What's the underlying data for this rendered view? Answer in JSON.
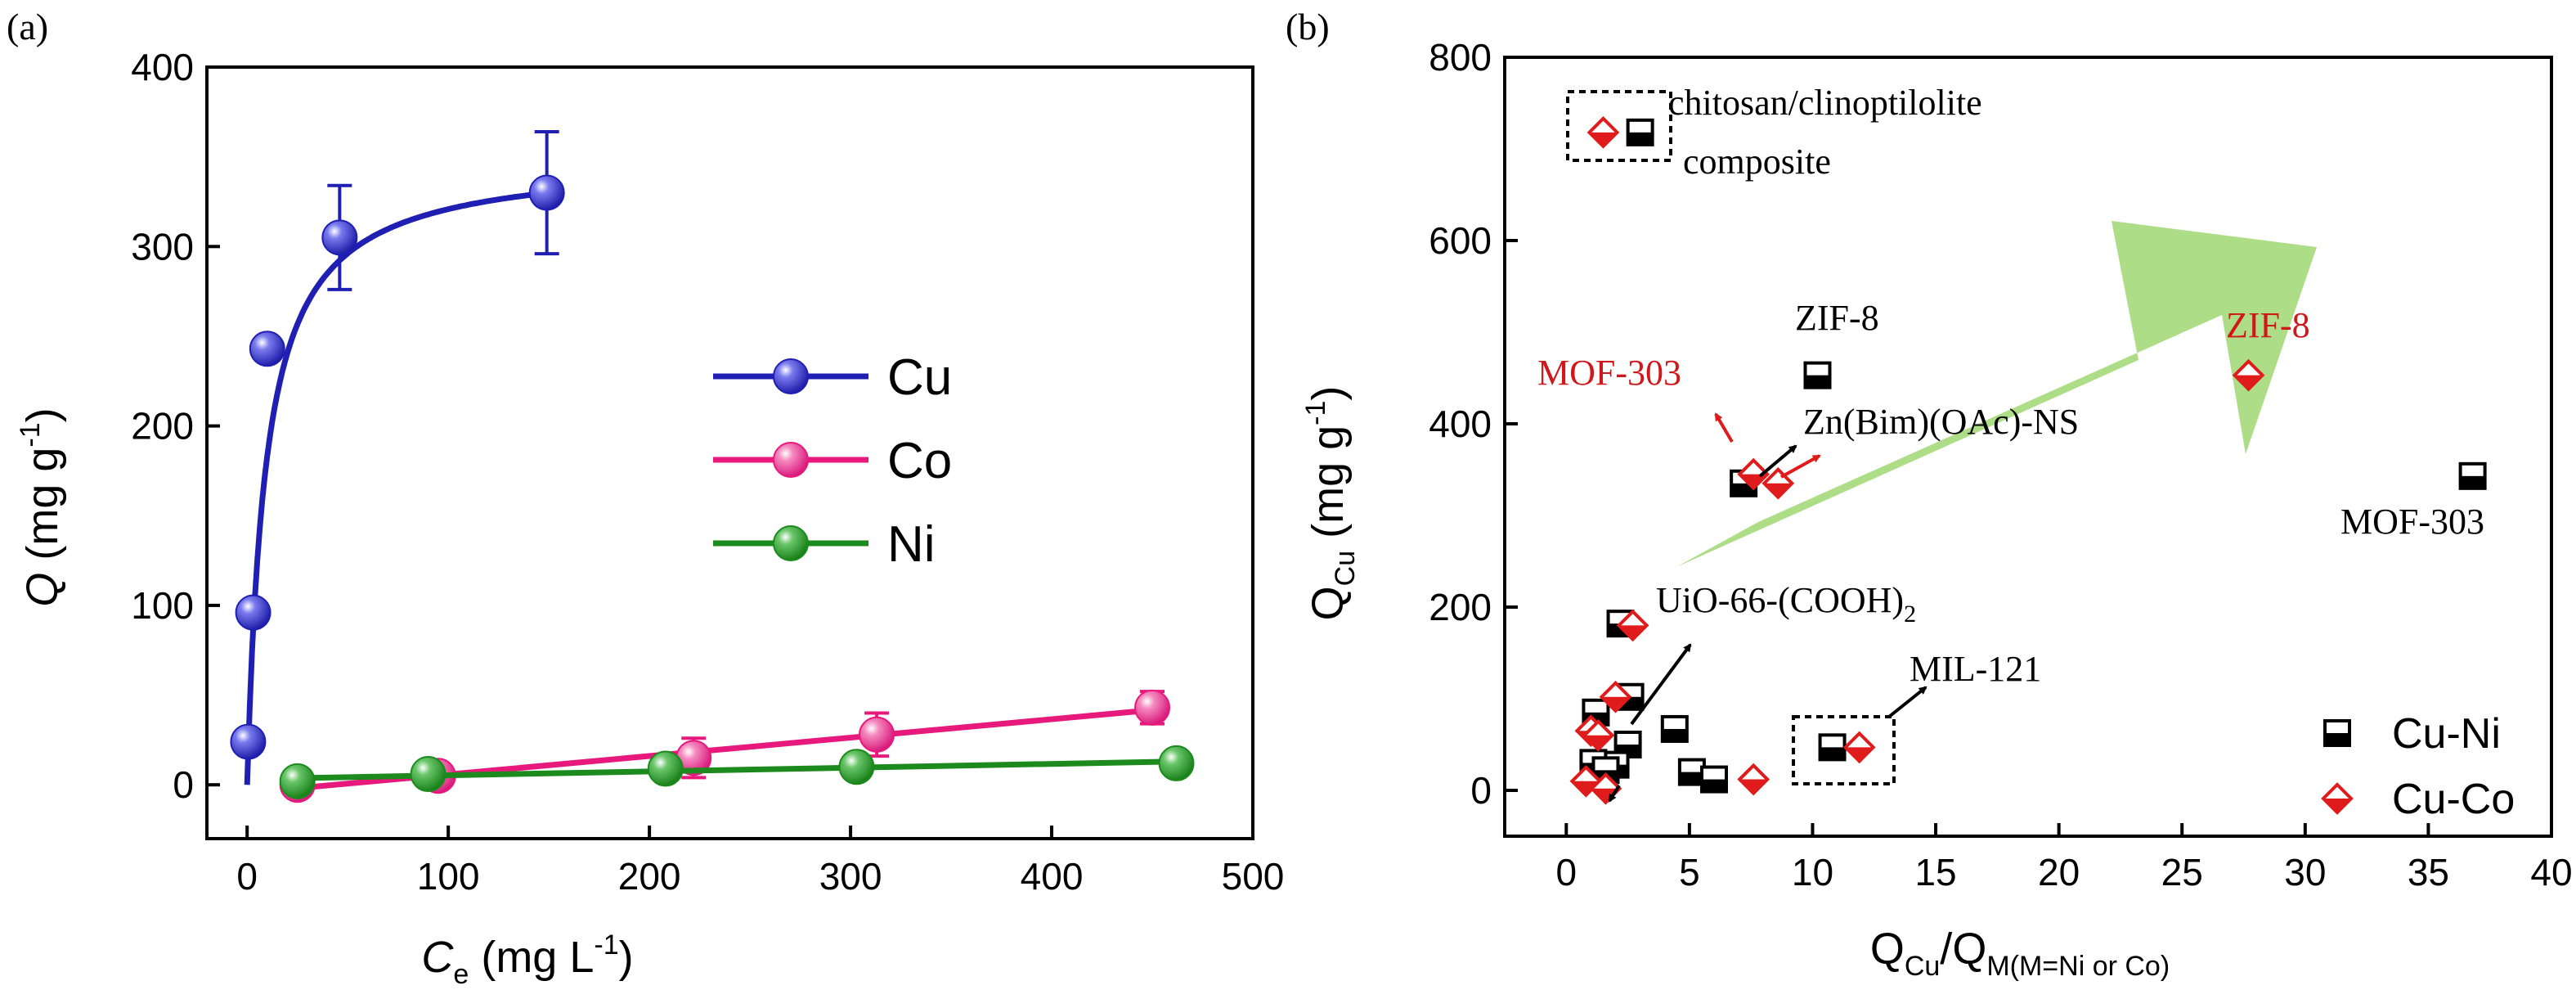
{
  "chart_data": [
    {
      "panel_label": "(a)",
      "type": "scatter",
      "xlabel": {
        "sym": "C",
        "sub": "e",
        "unit": " (mg L",
        "sup": "-1",
        "close": ")"
      },
      "ylabel": {
        "sym": "Q",
        "unit": " (mg g",
        "sup": "-1",
        "close": ")"
      },
      "xlim": [
        -20,
        500
      ],
      "ylim": [
        -30,
        400
      ],
      "xticks": [
        0,
        100,
        200,
        300,
        400,
        500
      ],
      "yticks": [
        0,
        100,
        200,
        300,
        400
      ],
      "series": [
        {
          "name": "Cu",
          "color": "#1f1fb4",
          "points": [
            [
              0.5,
              24
            ],
            [
              3,
              96
            ],
            [
              10,
              243
            ],
            [
              46,
              305
            ],
            [
              149,
              330
            ]
          ],
          "errors": [
            0,
            0,
            0,
            29,
            34
          ],
          "fit": "langmuir",
          "qmax": 350,
          "K": 0.11,
          "fit_x": [
            0,
            150
          ]
        },
        {
          "name": "Co",
          "color": "#e8197d",
          "points": [
            [
              25,
              0
            ],
            [
              95,
              5
            ],
            [
              222,
              15
            ],
            [
              313,
              28
            ],
            [
              450,
              43
            ]
          ],
          "errors": [
            0,
            0,
            11,
            12,
            9
          ],
          "fit": "linear",
          "fit_x": [
            25,
            455
          ]
        },
        {
          "name": "Ni",
          "color": "#1c8a1c",
          "points": [
            [
              25,
              2
            ],
            [
              90,
              6
            ],
            [
              208,
              9
            ],
            [
              303,
              10
            ],
            [
              462,
              12
            ]
          ],
          "errors": [
            0,
            0,
            0,
            0,
            0
          ],
          "fit": "linear",
          "fit_x": [
            25,
            462
          ]
        }
      ]
    },
    {
      "panel_label": "(b)",
      "type": "scatter",
      "xlabel": {
        "sym": "Q",
        "sub": "Cu",
        "slash": "/",
        "sym2": "Q",
        "sub2": "M(M=Ni or Co)"
      },
      "ylabel": {
        "sym": "Q",
        "sub": "Cu",
        "unit": " (mg g",
        "sup": "-1",
        "close": ")"
      },
      "xlim": [
        -2.5,
        40
      ],
      "ylim": [
        -50,
        800
      ],
      "xticks": [
        0,
        5,
        10,
        15,
        20,
        25,
        30,
        35,
        40
      ],
      "yticks": [
        0,
        200,
        400,
        600,
        800
      ],
      "series": [
        {
          "name": "Cu-Ni",
          "marker": "square-half",
          "color": "#000000",
          "points": [
            [
              3,
              718
            ],
            [
              10.2,
              453
            ],
            [
              36.8,
              343
            ],
            [
              7.2,
              335
            ],
            [
              2.2,
              182
            ],
            [
              1.2,
              85
            ],
            [
              2.6,
              102
            ],
            [
              2.5,
              50
            ],
            [
              2.0,
              28
            ],
            [
              1.1,
              30
            ],
            [
              1.6,
              22
            ],
            [
              4.4,
              67
            ],
            [
              5.1,
              20
            ],
            [
              6.0,
              12
            ],
            [
              10.8,
              47
            ]
          ]
        },
        {
          "name": "Cu-Co",
          "marker": "diamond-half",
          "color": "#e01b1b",
          "points": [
            [
              1.5,
              718
            ],
            [
              27.7,
              453
            ],
            [
              7.6,
              345
            ],
            [
              8.6,
              335
            ],
            [
              2.7,
              180
            ],
            [
              2.0,
              102
            ],
            [
              1.0,
              65
            ],
            [
              1.3,
              60
            ],
            [
              0.8,
              10
            ],
            [
              1.6,
              2
            ],
            [
              7.6,
              12
            ],
            [
              11.9,
              47
            ]
          ]
        }
      ],
      "annotations": [
        {
          "text": "chitosan/clinoptilolite",
          "color": "#000000"
        },
        {
          "text": "composite",
          "color": "#000000"
        },
        {
          "text": "ZIF-8",
          "color": "#000000"
        },
        {
          "text": "ZIF-8",
          "color": "#d0181b"
        },
        {
          "text": "MOF-303",
          "color": "#d0181b"
        },
        {
          "text": "MOF-303",
          "color": "#000000"
        },
        {
          "text": "Zn(Bim)(OAc)-NS",
          "color": "#000000"
        },
        {
          "text": "UiO-66-(COOH)",
          "sub": "2",
          "color": "#000000"
        },
        {
          "text": "MIL-121",
          "color": "#000000"
        }
      ],
      "arrow_color": "#a6da7c"
    }
  ]
}
